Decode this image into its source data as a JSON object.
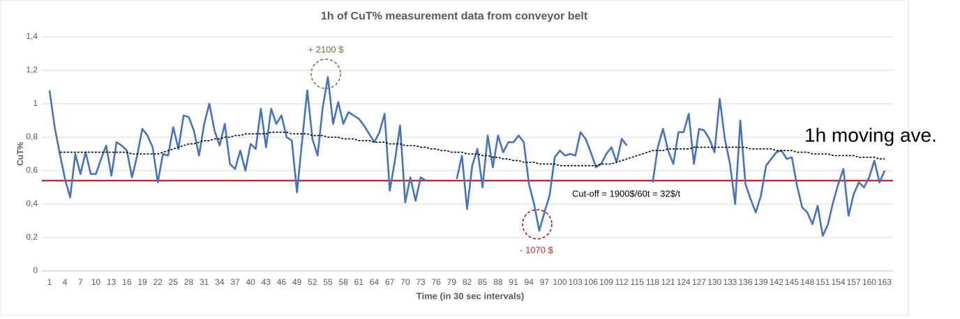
{
  "chart_data": {
    "type": "line",
    "title": "1h of CuT% measurement data from conveyor belt",
    "y_label": "CuT%",
    "x_label": "Time (in 30 sec intervals)",
    "categories": [
      1,
      null,
      null,
      4,
      null,
      null,
      7,
      null,
      null,
      10,
      null,
      null,
      13,
      null,
      null,
      16,
      null,
      null,
      19,
      null,
      null,
      22,
      null,
      null,
      25,
      null,
      null,
      28,
      null,
      null,
      31,
      null,
      null,
      34,
      null,
      null,
      37,
      null,
      null,
      40,
      null,
      null,
      43,
      null,
      null,
      46,
      null,
      null,
      49,
      null,
      null,
      52,
      null,
      null,
      55,
      null,
      null,
      58,
      null,
      null,
      61,
      null,
      null,
      64,
      null,
      null,
      67,
      null,
      null,
      70,
      null,
      null,
      73,
      null,
      null,
      76,
      null,
      null,
      79,
      null,
      null,
      82,
      null,
      null,
      85,
      null,
      null,
      88,
      null,
      null,
      91,
      null,
      null,
      94,
      null,
      null,
      97,
      null,
      null,
      100,
      null,
      null,
      103,
      null,
      null,
      106,
      null,
      null,
      109,
      null,
      null,
      112,
      null,
      null,
      115,
      null,
      null,
      118,
      null,
      null,
      121,
      null,
      null,
      124,
      null,
      null,
      127,
      null,
      null,
      130,
      null,
      null,
      133,
      null,
      null,
      136,
      null,
      null,
      139,
      null,
      null,
      142,
      null,
      null,
      145,
      null,
      null,
      148,
      null,
      null,
      151,
      null,
      null,
      154,
      null,
      null,
      157,
      null,
      null,
      160,
      null,
      null,
      163
    ],
    "series": [
      {
        "color": "#4472c4",
        "values": [
          1.08,
          0.86,
          0.7,
          0.55,
          0.44,
          0.7,
          0.58,
          0.71,
          0.58,
          0.58,
          0.67,
          0.75,
          0.57,
          0.77,
          0.75,
          0.72,
          0.56,
          0.69,
          0.85,
          0.81,
          0.74,
          0.53,
          0.7,
          0.69,
          0.86,
          0.73,
          0.93,
          0.92,
          0.84,
          0.69,
          0.88,
          1.0,
          0.84,
          0.75,
          0.88,
          0.64,
          0.61,
          0.72,
          0.6,
          0.76,
          0.73,
          0.97,
          0.74,
          0.97,
          0.88,
          0.93,
          0.8,
          0.78,
          0.47,
          0.78,
          1.08,
          0.79,
          0.69,
          0.98,
          1.16,
          0.88,
          1.01,
          0.88,
          0.95,
          0.93,
          0.91,
          0.87,
          0.82,
          0.77,
          0.83,
          0.94,
          0.48,
          0.66,
          0.87,
          0.41,
          0.56,
          0.42,
          0.56,
          0.54,
          null,
          null,
          null,
          null,
          null,
          0.55,
          0.69,
          0.37,
          0.63,
          0.73,
          0.5,
          0.81,
          0.62,
          0.81,
          0.71,
          0.77,
          0.77,
          0.81,
          0.77,
          0.52,
          0.4,
          0.24,
          0.35,
          0.45,
          0.68,
          0.72,
          0.69,
          0.7,
          0.69,
          0.83,
          0.79,
          0.71,
          0.62,
          0.64,
          0.7,
          0.74,
          0.65,
          0.79,
          0.75,
          null,
          null,
          null,
          null,
          0.53,
          0.74,
          0.85,
          0.72,
          0.64,
          0.83,
          0.83,
          0.94,
          0.64,
          0.85,
          0.84,
          0.79,
          0.71,
          1.03,
          0.79,
          0.64,
          0.4,
          0.9,
          0.52,
          0.43,
          0.35,
          0.45,
          0.63,
          0.67,
          0.71,
          0.72,
          0.67,
          0.68,
          0.51,
          0.38,
          0.35,
          0.28,
          0.39,
          0.21,
          0.28,
          0.41,
          0.52,
          0.61,
          0.33,
          0.46,
          0.53,
          0.5,
          0.56,
          0.66,
          0.53,
          0.6
        ]
      },
      {
        "name": "1h moving ave.",
        "color": "#000000",
        "dashed": true,
        "values": [
          null,
          null,
          0.71,
          0.71,
          0.71,
          0.71,
          0.71,
          0.71,
          0.71,
          0.71,
          0.71,
          0.71,
          0.71,
          0.71,
          0.71,
          0.71,
          0.7,
          0.7,
          0.7,
          0.7,
          0.7,
          0.7,
          0.71,
          0.72,
          0.73,
          0.74,
          0.75,
          0.76,
          0.76,
          0.77,
          0.78,
          0.78,
          0.79,
          0.79,
          0.8,
          0.8,
          0.81,
          0.81,
          0.82,
          0.82,
          0.82,
          0.82,
          0.82,
          0.83,
          0.83,
          0.83,
          0.83,
          0.82,
          0.82,
          0.82,
          0.82,
          0.81,
          0.81,
          0.81,
          0.8,
          0.8,
          0.8,
          0.79,
          0.79,
          0.79,
          0.78,
          0.78,
          0.78,
          0.77,
          0.77,
          0.77,
          0.76,
          0.76,
          0.76,
          0.75,
          0.75,
          0.75,
          0.74,
          0.74,
          0.73,
          0.73,
          0.72,
          0.72,
          0.71,
          0.71,
          0.71,
          0.7,
          0.7,
          0.7,
          0.69,
          0.69,
          0.68,
          0.68,
          0.67,
          0.67,
          0.66,
          0.66,
          0.65,
          0.65,
          0.65,
          0.64,
          0.64,
          0.64,
          0.64,
          0.63,
          0.63,
          0.63,
          0.63,
          0.63,
          0.63,
          0.63,
          0.63,
          0.64,
          0.64,
          0.64,
          0.65,
          0.66,
          0.67,
          0.68,
          0.69,
          0.7,
          0.71,
          0.72,
          0.72,
          0.72,
          0.73,
          0.73,
          0.73,
          0.73,
          0.73,
          0.74,
          0.74,
          0.74,
          0.74,
          0.74,
          0.74,
          0.74,
          0.74,
          0.74,
          0.74,
          0.74,
          0.73,
          0.73,
          0.73,
          0.73,
          0.73,
          0.72,
          0.72,
          0.72,
          0.72,
          0.71,
          0.71,
          0.71,
          0.7,
          0.7,
          0.7,
          0.7,
          0.69,
          0.69,
          0.69,
          0.69,
          0.69,
          0.68,
          0.68,
          0.68,
          0.68,
          0.67,
          0.67
        ]
      }
    ],
    "cutoff": {
      "value": 0.54,
      "label": "Cut-off = 1900$/60t = 32$/t",
      "color": "#c00000"
    },
    "annotations": [
      {
        "text": "+ 2100 $",
        "color": "#548235"
      },
      {
        "text": "- 1070 $",
        "color": "#e02020"
      }
    ],
    "ylim": [
      0,
      1.4
    ],
    "yticks": [
      0,
      {
        "value": 0.2,
        "label": "0,2"
      },
      {
        "value": 0.4,
        "label": "0,4"
      },
      {
        "value": 0.6,
        "label": "0,6"
      },
      {
        "value": 0.8,
        "label": "0,8"
      },
      1,
      {
        "value": 1.2,
        "label": "1,2"
      },
      {
        "value": 1.4,
        "label": "1,4"
      }
    ],
    "grid": true
  }
}
